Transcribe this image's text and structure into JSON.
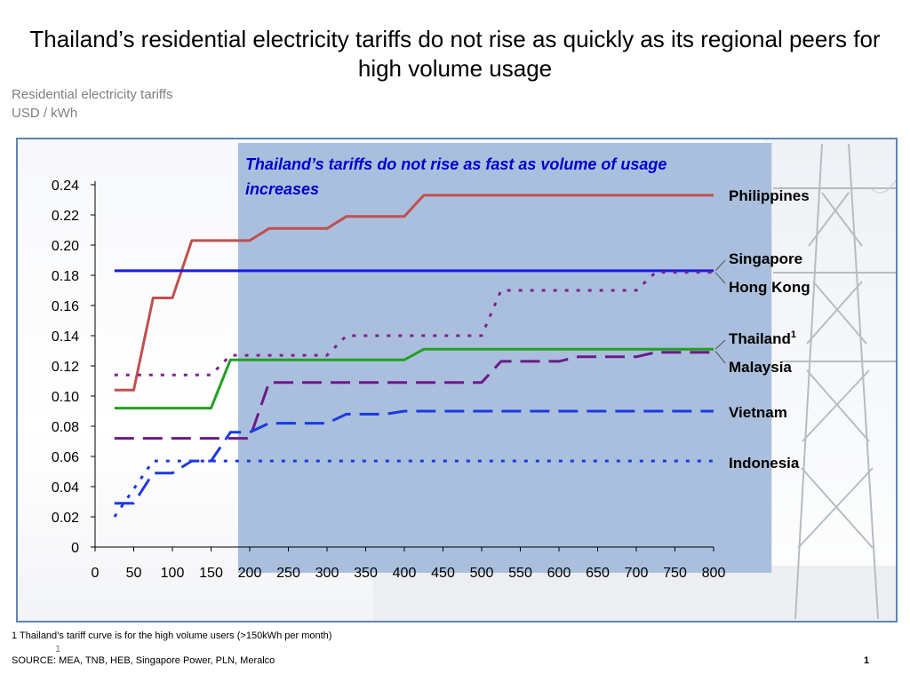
{
  "title": "Thailand’s residential electricity tariffs do not rise as quickly as its regional peers for high volume usage",
  "subtitle_line1": "Residential electricity tariffs",
  "subtitle_line2": "USD / kWh",
  "footnote": "1 Thailand’s tariff curve is for the high volume users (>150kWh per month)",
  "slide_mark": "1",
  "source": "SOURCE: MEA, TNB, HEB, Singapore Power, PLN, Meralco",
  "page_number": "1",
  "chart_data": {
    "type": "line",
    "annotation": {
      "text": "Thailand’s tariffs do not rise as fast as volume of usage increases",
      "x_range": [
        185,
        875
      ],
      "color": "#0000cc",
      "band_color": "#a9bfdd"
    },
    "x_ticks": [
      0,
      50,
      100,
      150,
      200,
      250,
      300,
      350,
      400,
      450,
      500,
      550,
      600,
      650,
      700,
      750,
      800
    ],
    "y_ticks": [
      "0",
      "0.02",
      "0.04",
      "0.06",
      "0.08",
      "0.10",
      "0.12",
      "0.14",
      "0.16",
      "0.18",
      "0.20",
      "0.22",
      "0.24"
    ],
    "xlim": [
      0,
      800
    ],
    "ylim": [
      0,
      0.24
    ],
    "grid": false,
    "series": [
      {
        "name": "Philippines",
        "color": "#c0504d",
        "style": "solid",
        "points": [
          [
            25,
            0.104
          ],
          [
            50,
            0.104
          ],
          [
            75,
            0.165
          ],
          [
            100,
            0.165
          ],
          [
            125,
            0.203
          ],
          [
            200,
            0.203
          ],
          [
            225,
            0.211
          ],
          [
            300,
            0.211
          ],
          [
            325,
            0.219
          ],
          [
            400,
            0.219
          ],
          [
            425,
            0.233
          ],
          [
            800,
            0.233
          ]
        ]
      },
      {
        "name": "Singapore",
        "color": "#1a1adf",
        "style": "solid",
        "points": [
          [
            25,
            0.183
          ],
          [
            800,
            0.183
          ]
        ]
      },
      {
        "name": "Hong Kong",
        "color": "#7f1f8f",
        "style": "dotted",
        "points": [
          [
            25,
            0.114
          ],
          [
            150,
            0.114
          ],
          [
            175,
            0.127
          ],
          [
            300,
            0.127
          ],
          [
            325,
            0.14
          ],
          [
            500,
            0.14
          ],
          [
            525,
            0.17
          ],
          [
            700,
            0.17
          ],
          [
            725,
            0.182
          ],
          [
            800,
            0.182
          ]
        ]
      },
      {
        "name": "Thailand",
        "label_sup": "1",
        "color": "#22a022",
        "style": "solid",
        "points": [
          [
            25,
            0.092
          ],
          [
            150,
            0.092
          ],
          [
            175,
            0.124
          ],
          [
            400,
            0.124
          ],
          [
            425,
            0.131
          ],
          [
            800,
            0.131
          ]
        ]
      },
      {
        "name": "Malaysia",
        "color": "#6a1a8a",
        "style": "dashed",
        "points": [
          [
            25,
            0.072
          ],
          [
            200,
            0.072
          ],
          [
            225,
            0.109
          ],
          [
            500,
            0.109
          ],
          [
            525,
            0.123
          ],
          [
            600,
            0.123
          ],
          [
            625,
            0.126
          ],
          [
            700,
            0.126
          ],
          [
            725,
            0.129
          ],
          [
            800,
            0.129
          ]
        ]
      },
      {
        "name": "Vietnam",
        "color": "#1a3ae0",
        "style": "dashed",
        "points": [
          [
            25,
            0.029
          ],
          [
            50,
            0.029
          ],
          [
            75,
            0.049
          ],
          [
            100,
            0.049
          ],
          [
            125,
            0.057
          ],
          [
            150,
            0.057
          ],
          [
            175,
            0.076
          ],
          [
            200,
            0.076
          ],
          [
            225,
            0.082
          ],
          [
            300,
            0.082
          ],
          [
            325,
            0.088
          ],
          [
            375,
            0.088
          ],
          [
            400,
            0.09
          ],
          [
            800,
            0.09
          ]
        ]
      },
      {
        "name": "Indonesia",
        "color": "#1a3ae0",
        "style": "dotted",
        "points": [
          [
            25,
            0.02
          ],
          [
            75,
            0.057
          ],
          [
            800,
            0.057
          ]
        ]
      }
    ]
  }
}
